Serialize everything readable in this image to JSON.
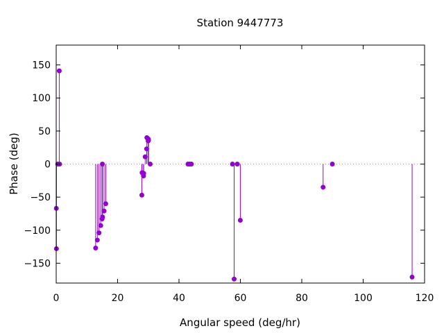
{
  "chart_data": {
    "type": "scatter",
    "style": "impulses-with-points",
    "title": "Station 9447773",
    "xlabel": "Angular speed (deg/hr)",
    "ylabel": "Phase (deg)",
    "xlim": [
      0,
      120
    ],
    "ylim": [
      -180,
      180
    ],
    "xticks": [
      0,
      20,
      40,
      60,
      80,
      100,
      120
    ],
    "yticks": [
      -150,
      -100,
      -50,
      0,
      50,
      100,
      150
    ],
    "zero_line": true,
    "grid": false,
    "legend": "none",
    "series": [
      {
        "color": "#9400d3",
        "points": [
          {
            "x": 0.04,
            "y": -67
          },
          {
            "x": 0.08,
            "y": -128
          },
          {
            "x": 0.5,
            "y": 0
          },
          {
            "x": 1.0,
            "y": 141
          },
          {
            "x": 1.1,
            "y": 0
          },
          {
            "x": 12.85,
            "y": -127
          },
          {
            "x": 13.4,
            "y": -115
          },
          {
            "x": 13.94,
            "y": -104
          },
          {
            "x": 14.5,
            "y": -93
          },
          {
            "x": 14.96,
            "y": -83
          },
          {
            "x": 15.04,
            "y": 0
          },
          {
            "x": 15.1,
            "y": -80
          },
          {
            "x": 15.59,
            "y": -71
          },
          {
            "x": 16.14,
            "y": -60
          },
          {
            "x": 27.9,
            "y": -47
          },
          {
            "x": 27.97,
            "y": -13
          },
          {
            "x": 28.44,
            "y": -18
          },
          {
            "x": 28.51,
            "y": -14
          },
          {
            "x": 28.99,
            "y": 11
          },
          {
            "x": 29.46,
            "y": 23
          },
          {
            "x": 29.53,
            "y": 40
          },
          {
            "x": 29.96,
            "y": 35
          },
          {
            "x": 30.0,
            "y": 38
          },
          {
            "x": 30.08,
            "y": 36
          },
          {
            "x": 30.63,
            "y": 0
          },
          {
            "x": 42.93,
            "y": 0
          },
          {
            "x": 43.48,
            "y": 0
          },
          {
            "x": 44.03,
            "y": 0
          },
          {
            "x": 57.42,
            "y": 0
          },
          {
            "x": 57.97,
            "y": -174
          },
          {
            "x": 58.98,
            "y": 0
          },
          {
            "x": 59.98,
            "y": -85
          },
          {
            "x": 86.95,
            "y": -35
          },
          {
            "x": 89.95,
            "y": 0
          },
          {
            "x": 115.94,
            "y": -171
          }
        ]
      }
    ]
  }
}
